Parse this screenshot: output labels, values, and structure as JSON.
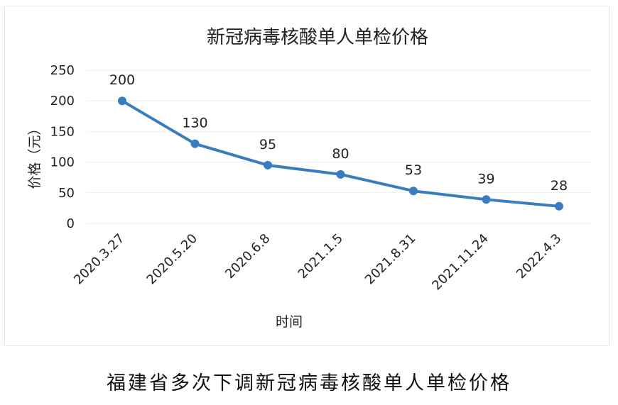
{
  "caption": "福建省多次下调新冠病毒核酸单人单检价格",
  "chart_data": {
    "type": "line",
    "title": "新冠病毒核酸单人单检价格",
    "xlabel": "时间",
    "ylabel": "价格（元）",
    "categories": [
      "2020.3.27",
      "2020.5.20",
      "2020.6.8",
      "2021.1.5",
      "2021.8.31",
      "2021.11.24",
      "2022.4.3"
    ],
    "series": [
      {
        "values": [
          200,
          130,
          95,
          80,
          53,
          39,
          28
        ],
        "color": "#3a7dbf"
      }
    ],
    "data_labels": [
      "200",
      "130",
      "95",
      "80",
      "53",
      "39",
      "28"
    ],
    "ylim": [
      0,
      250
    ],
    "yticks": [
      0,
      50,
      100,
      150,
      200,
      250
    ],
    "grid": true,
    "legend": "none"
  }
}
